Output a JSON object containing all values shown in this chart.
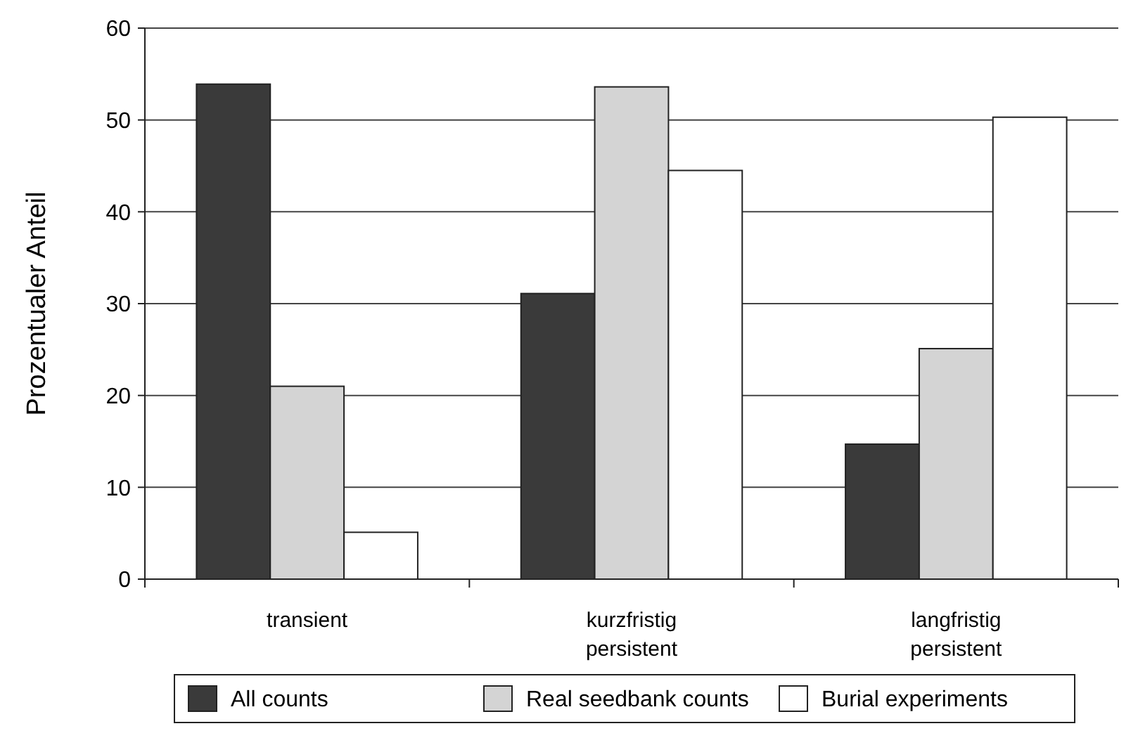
{
  "chart_data": {
    "type": "bar",
    "ylabel": "Prozentualer Anteil",
    "categories": [
      "transient",
      "kurzfristig persistent",
      "langfristig persistent"
    ],
    "series": [
      {
        "name": "All counts",
        "color": "#3a3a3a",
        "values": [
          53.9,
          31.1,
          14.7
        ]
      },
      {
        "name": "Real seedbank counts",
        "color": "#d4d4d4",
        "values": [
          21.0,
          53.6,
          25.1
        ]
      },
      {
        "name": "Burial experiments",
        "color": "#ffffff",
        "values": [
          5.1,
          44.5,
          50.3
        ]
      }
    ],
    "ylim": [
      0,
      60
    ],
    "yticks": [
      0,
      10,
      20,
      30,
      40,
      50,
      60
    ],
    "grid": "y",
    "legend": "bottom"
  }
}
